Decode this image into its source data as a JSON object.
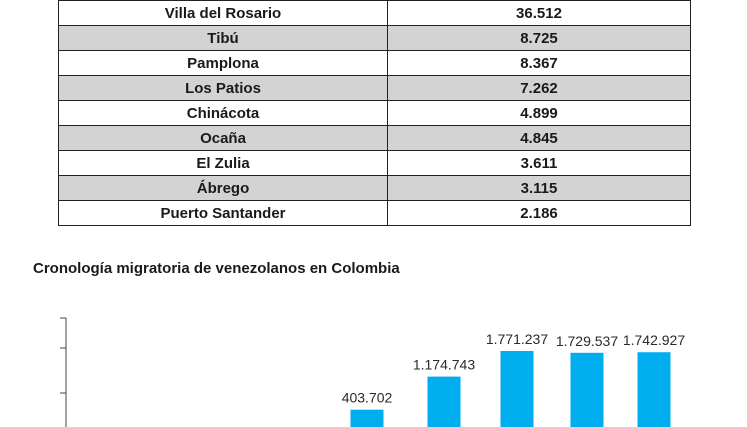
{
  "table": {
    "rows": [
      {
        "name": "Villa del Rosario",
        "value": "36.512"
      },
      {
        "name": "Tibú",
        "value": "8.725"
      },
      {
        "name": "Pamplona",
        "value": "8.367"
      },
      {
        "name": "Los Patios",
        "value": "7.262"
      },
      {
        "name": "Chinácota",
        "value": "4.899"
      },
      {
        "name": "Ocaña",
        "value": "4.845"
      },
      {
        "name": "El Zulia",
        "value": "3.611"
      },
      {
        "name": "Ábrego",
        "value": "3.115"
      },
      {
        "name": "Puerto Santander",
        "value": "2.186"
      }
    ],
    "shade_color": "#d3d3d3"
  },
  "chart_data": {
    "type": "bar",
    "title": "Cronología migratoria de venezolanos en Colombia",
    "bar_color": "#00aeef",
    "series": [
      {
        "values": [
          403702,
          1174743,
          1771237,
          1729537,
          1742927
        ],
        "labels": [
          "403.702",
          "1.174.743",
          "1.771.237",
          "1.729.537",
          "1.742.927"
        ]
      }
    ]
  }
}
